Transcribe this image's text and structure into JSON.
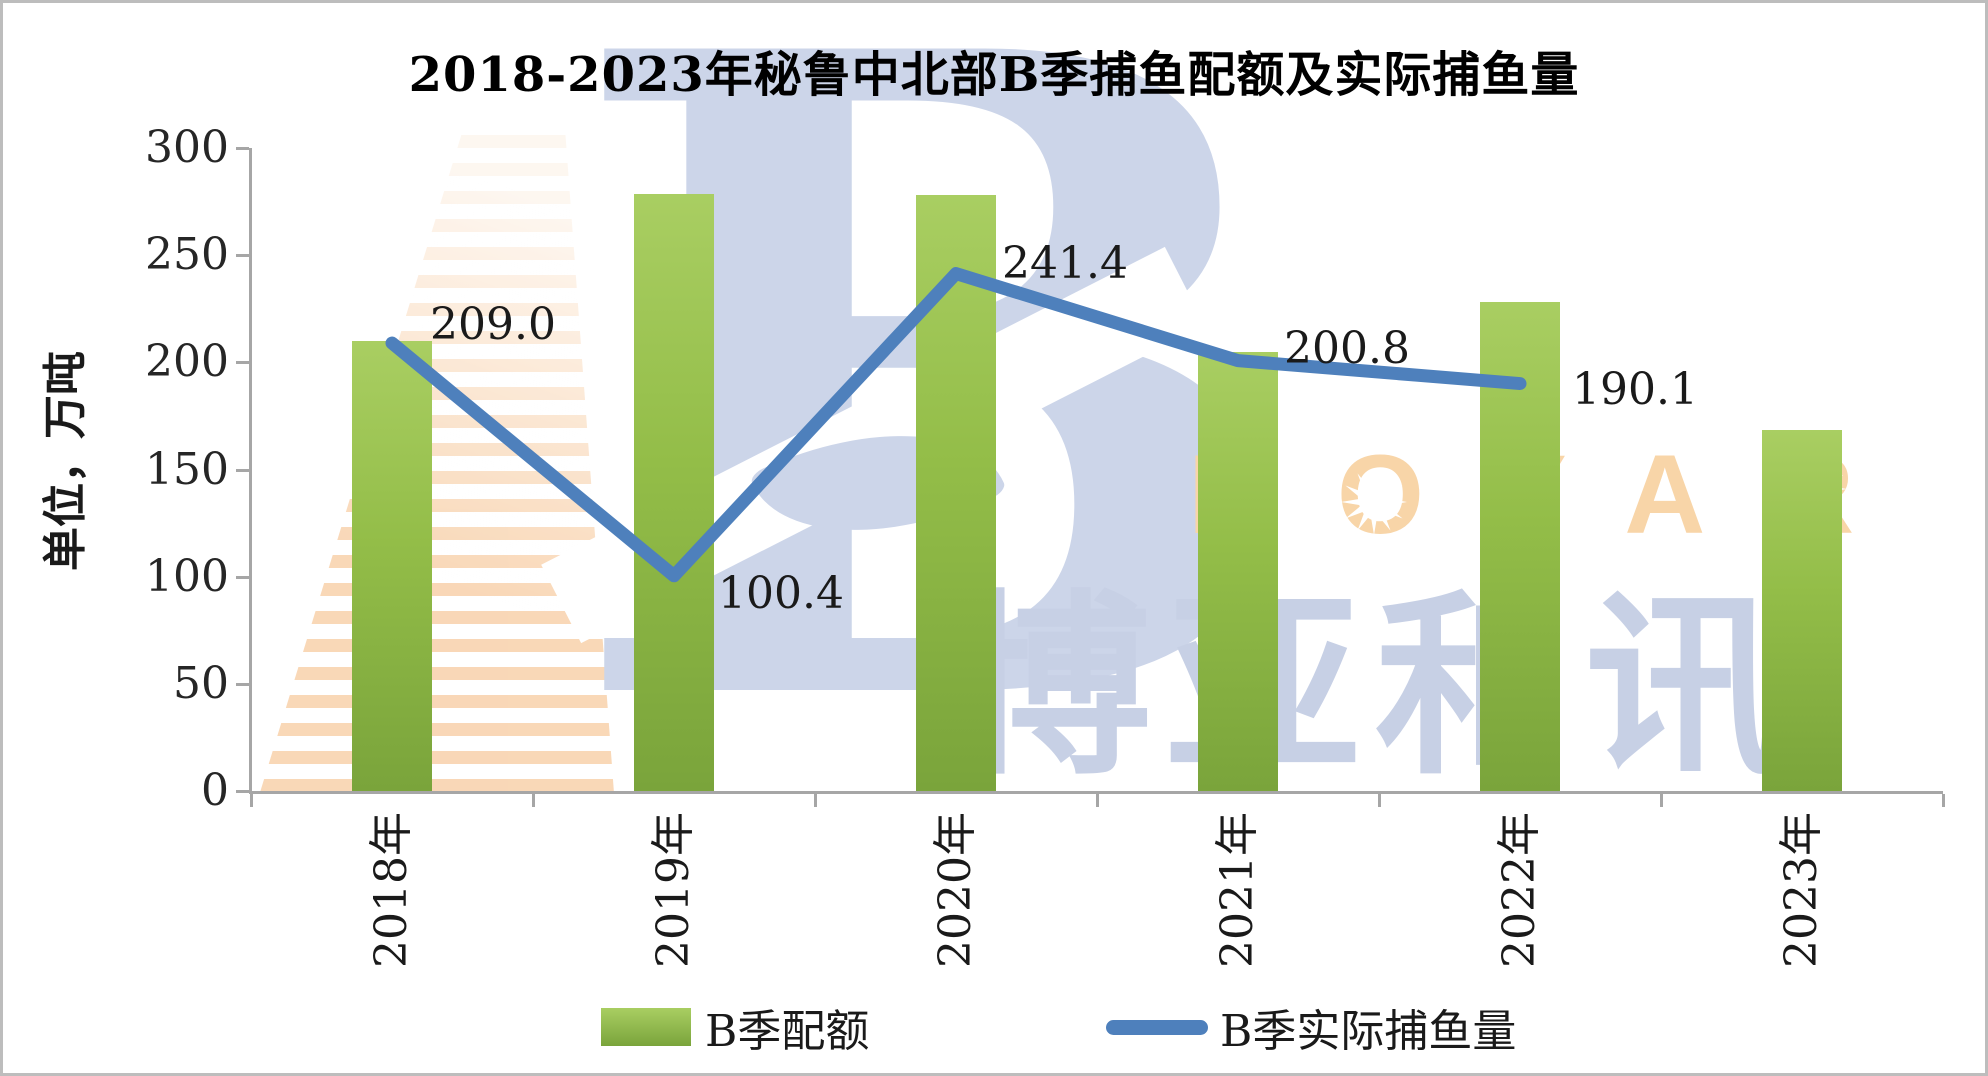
{
  "chart_data": {
    "type": "bar+line",
    "title": "2018-2023年秘鲁中北部B季捕鱼配额及实际捕鱼量",
    "ylabel": "单位，万吨",
    "xlabel": "",
    "ylim": [
      0,
      300
    ],
    "yticks": [
      0,
      50,
      100,
      150,
      200,
      250,
      300
    ],
    "grid": false,
    "legend_position": "bottom",
    "categories": [
      "2018年",
      "2019年",
      "2020年",
      "2021年",
      "2022年",
      "2023年"
    ],
    "series": [
      {
        "name": "B季配额",
        "type": "bar",
        "color": "#93bd48",
        "values": [
          210,
          278.6,
          278,
          204.7,
          228.3,
          168.2
        ]
      },
      {
        "name": "B季实际捕鱼量",
        "type": "line",
        "color": "#4e80bc",
        "values": [
          209.0,
          100.4,
          241.4,
          200.8,
          190.1,
          null
        ],
        "point_labels": [
          "209.0",
          "100.4",
          "241.4",
          "200.8",
          "190.1",
          ""
        ]
      }
    ]
  },
  "watermark": {
    "logo_letter": "B",
    "latin_text": "BOYAR",
    "cn_text": "博亚和讯",
    "starburst_icon": "12-point-star"
  },
  "colors": {
    "bar_green": "#93bd48",
    "bar_green_dark": "#7aa43b",
    "line_blue": "#4e80bc",
    "axis_grey": "#a6a6a6",
    "watermark_orange": "#f8d5a8",
    "watermark_blue": "#c7d0e5",
    "text": "#1a1a1a"
  }
}
